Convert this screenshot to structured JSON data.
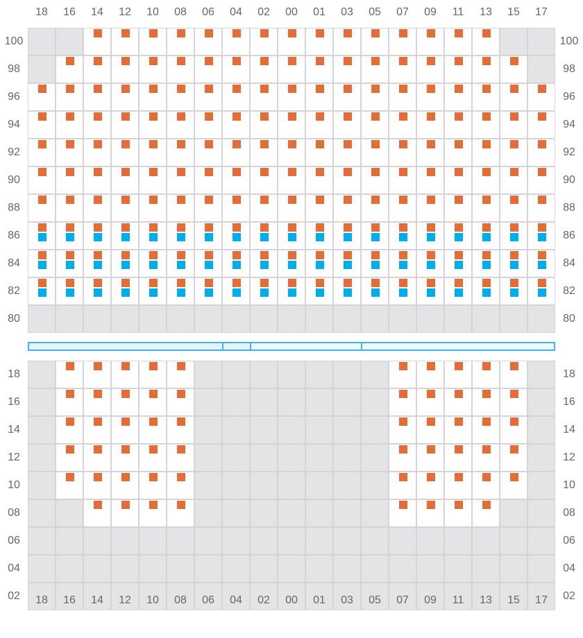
{
  "columns": [
    "18",
    "16",
    "14",
    "12",
    "10",
    "08",
    "06",
    "04",
    "02",
    "00",
    "01",
    "03",
    "05",
    "07",
    "09",
    "11",
    "13",
    "15",
    "17"
  ],
  "colors": {
    "orange": "#e26d36",
    "blue": "#00aeea",
    "unavailable": "#e4e4e7",
    "bar": "#3bb5f0"
  },
  "legend_states": {
    "g": "unavailable",
    "e": "empty",
    "o": "orange marker",
    "ob": "orange + blue markers"
  },
  "top_section": {
    "rows": [
      {
        "label": "100",
        "cells": [
          "g",
          "g",
          "o",
          "o",
          "o",
          "o",
          "o",
          "o",
          "o",
          "o",
          "o",
          "o",
          "o",
          "o",
          "o",
          "o",
          "o",
          "g",
          "g"
        ]
      },
      {
        "label": "98",
        "cells": [
          "g",
          "o",
          "o",
          "o",
          "o",
          "o",
          "o",
          "o",
          "o",
          "o",
          "o",
          "o",
          "o",
          "o",
          "o",
          "o",
          "o",
          "o",
          "g"
        ]
      },
      {
        "label": "96",
        "cells": [
          "o",
          "o",
          "o",
          "o",
          "o",
          "o",
          "o",
          "o",
          "o",
          "o",
          "o",
          "o",
          "o",
          "o",
          "o",
          "o",
          "o",
          "o",
          "o"
        ]
      },
      {
        "label": "94",
        "cells": [
          "o",
          "o",
          "o",
          "o",
          "o",
          "o",
          "o",
          "o",
          "o",
          "o",
          "o",
          "o",
          "o",
          "o",
          "o",
          "o",
          "o",
          "o",
          "o"
        ]
      },
      {
        "label": "92",
        "cells": [
          "o",
          "o",
          "o",
          "o",
          "o",
          "o",
          "o",
          "o",
          "o",
          "o",
          "o",
          "o",
          "o",
          "o",
          "o",
          "o",
          "o",
          "o",
          "o"
        ]
      },
      {
        "label": "90",
        "cells": [
          "o",
          "o",
          "o",
          "o",
          "o",
          "o",
          "o",
          "o",
          "o",
          "o",
          "o",
          "o",
          "o",
          "o",
          "o",
          "o",
          "o",
          "o",
          "o"
        ]
      },
      {
        "label": "88",
        "cells": [
          "o",
          "o",
          "o",
          "o",
          "o",
          "o",
          "o",
          "o",
          "o",
          "o",
          "o",
          "o",
          "o",
          "o",
          "o",
          "o",
          "o",
          "o",
          "o"
        ]
      },
      {
        "label": "86",
        "cells": [
          "ob",
          "ob",
          "ob",
          "ob",
          "ob",
          "ob",
          "ob",
          "ob",
          "ob",
          "ob",
          "ob",
          "ob",
          "ob",
          "ob",
          "ob",
          "ob",
          "ob",
          "ob",
          "ob"
        ]
      },
      {
        "label": "84",
        "cells": [
          "ob",
          "ob",
          "ob",
          "ob",
          "ob",
          "ob",
          "ob",
          "ob",
          "ob",
          "ob",
          "ob",
          "ob",
          "ob",
          "ob",
          "ob",
          "ob",
          "ob",
          "ob",
          "ob"
        ]
      },
      {
        "label": "82",
        "cells": [
          "ob",
          "ob",
          "ob",
          "ob",
          "ob",
          "ob",
          "ob",
          "ob",
          "ob",
          "ob",
          "ob",
          "ob",
          "ob",
          "ob",
          "ob",
          "ob",
          "ob",
          "ob",
          "ob"
        ]
      },
      {
        "label": "80",
        "cells": [
          "g",
          "g",
          "g",
          "g",
          "g",
          "g",
          "g",
          "g",
          "g",
          "g",
          "g",
          "g",
          "g",
          "g",
          "g",
          "g",
          "g",
          "g",
          "g"
        ]
      }
    ]
  },
  "divider_segments": [
    7,
    1,
    4,
    7
  ],
  "bottom_section": {
    "rows": [
      {
        "label": "18",
        "cells": [
          "g",
          "o",
          "o",
          "o",
          "o",
          "o",
          "g",
          "g",
          "g",
          "g",
          "g",
          "g",
          "g",
          "o",
          "o",
          "o",
          "o",
          "o",
          "g"
        ]
      },
      {
        "label": "16",
        "cells": [
          "g",
          "o",
          "o",
          "o",
          "o",
          "o",
          "g",
          "g",
          "g",
          "g",
          "g",
          "g",
          "g",
          "o",
          "o",
          "o",
          "o",
          "o",
          "g"
        ]
      },
      {
        "label": "14",
        "cells": [
          "g",
          "o",
          "o",
          "o",
          "o",
          "o",
          "g",
          "g",
          "g",
          "g",
          "g",
          "g",
          "g",
          "o",
          "o",
          "o",
          "o",
          "o",
          "g"
        ]
      },
      {
        "label": "12",
        "cells": [
          "g",
          "o",
          "o",
          "o",
          "o",
          "o",
          "g",
          "g",
          "g",
          "g",
          "g",
          "g",
          "g",
          "o",
          "o",
          "o",
          "o",
          "o",
          "g"
        ]
      },
      {
        "label": "10",
        "cells": [
          "g",
          "o",
          "o",
          "o",
          "o",
          "o",
          "g",
          "g",
          "g",
          "g",
          "g",
          "g",
          "g",
          "o",
          "o",
          "o",
          "o",
          "o",
          "g"
        ]
      },
      {
        "label": "08",
        "cells": [
          "g",
          "g",
          "o",
          "o",
          "o",
          "o",
          "g",
          "g",
          "g",
          "g",
          "g",
          "g",
          "g",
          "o",
          "o",
          "o",
          "o",
          "g",
          "g"
        ]
      },
      {
        "label": "06",
        "cells": [
          "g",
          "g",
          "g",
          "g",
          "g",
          "g",
          "g",
          "g",
          "g",
          "g",
          "g",
          "g",
          "g",
          "g",
          "g",
          "g",
          "g",
          "g",
          "g"
        ]
      },
      {
        "label": "04",
        "cells": [
          "g",
          "g",
          "g",
          "g",
          "g",
          "g",
          "g",
          "g",
          "g",
          "g",
          "g",
          "g",
          "g",
          "g",
          "g",
          "g",
          "g",
          "g",
          "g"
        ]
      },
      {
        "label": "02",
        "cells": [
          "g",
          "g",
          "g",
          "g",
          "g",
          "g",
          "g",
          "g",
          "g",
          "g",
          "g",
          "g",
          "g",
          "g",
          "g",
          "g",
          "g",
          "g",
          "g"
        ]
      }
    ]
  }
}
